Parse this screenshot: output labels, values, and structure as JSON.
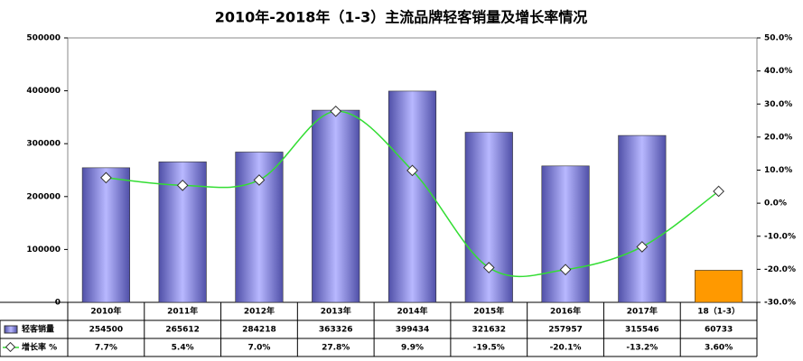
{
  "chart_data": {
    "type": "bar-line",
    "title": "2010年-2018年（1-3）主流品牌轻客销量及增长率情况",
    "categories": [
      "2010年",
      "2011年",
      "2012年",
      "2013年",
      "2014年",
      "2015年",
      "2016年",
      "2017年",
      "18（1-3）"
    ],
    "series": [
      {
        "name": "轻客销量",
        "type": "bar",
        "color": "#8a8aee",
        "colors": [
          "#8a8aee",
          "#8a8aee",
          "#8a8aee",
          "#8a8aee",
          "#8a8aee",
          "#8a8aee",
          "#8a8aee",
          "#8a8aee",
          "#ff9900"
        ],
        "values": [
          254500,
          265612,
          284218,
          363326,
          399434,
          321632,
          257957,
          315546,
          60733
        ]
      },
      {
        "name": "增长率 %",
        "type": "line",
        "axis": "y2",
        "color": "#33dd33",
        "values": [
          7.7,
          5.4,
          7.0,
          27.8,
          9.9,
          -19.5,
          -20.1,
          -13.2,
          3.6
        ],
        "value_labels": [
          "7.7%",
          "5.4%",
          "7.0%",
          "27.8%",
          "9.9%",
          "-19.5%",
          "-20.1%",
          "-13.2%",
          "3.60%"
        ]
      }
    ],
    "ylim": [
      0,
      500000
    ],
    "yticks": [
      0,
      100000,
      200000,
      300000,
      400000,
      500000
    ],
    "y2lim": [
      -30,
      50
    ],
    "y2ticks": [
      {
        "value": -30,
        "label": "-30.0%"
      },
      {
        "value": -20,
        "label": "-20.0%"
      },
      {
        "value": -10,
        "label": "-10.0%"
      },
      {
        "value": 0,
        "label": "0.0%"
      },
      {
        "value": 10,
        "label": "10.0%"
      },
      {
        "value": 20,
        "label": "20.0%"
      },
      {
        "value": 30,
        "label": "30.0%"
      },
      {
        "value": 40,
        "label": "40.0%"
      },
      {
        "value": 50,
        "label": "50.0%"
      }
    ]
  }
}
